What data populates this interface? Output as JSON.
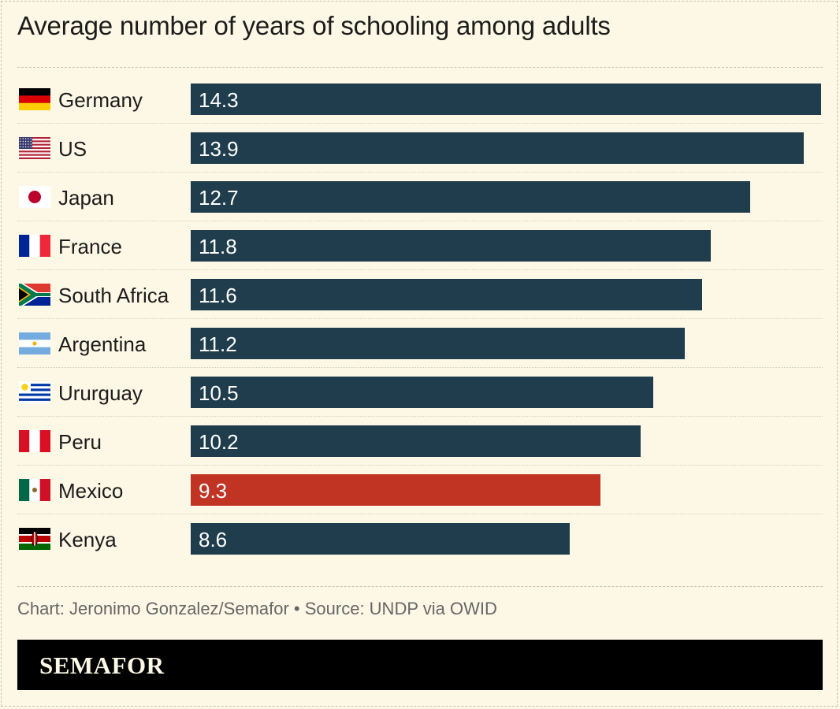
{
  "title": "Average number of years of schooling among adults",
  "credit": "Chart: Jeronimo Gonzalez/Semafor • Source: UNDP via OWID",
  "brand": "SEMAFOR",
  "colors": {
    "bar": "#1f3d4c",
    "highlight": "#c13424",
    "background": "#fdf8e5"
  },
  "chart_data": {
    "type": "bar",
    "orientation": "horizontal",
    "title": "Average number of years of schooling among adults",
    "xlabel": "",
    "ylabel": "",
    "xlim": [
      0,
      14.3
    ],
    "grid": false,
    "legend": "none",
    "categories": [
      "Germany",
      "US",
      "Japan",
      "France",
      "South Africa",
      "Argentina",
      "Ururguay",
      "Peru",
      "Mexico",
      "Kenya"
    ],
    "values": [
      14.3,
      13.9,
      12.7,
      11.8,
      11.6,
      11.2,
      10.5,
      10.2,
      9.3,
      8.6
    ],
    "value_labels": [
      "14.3",
      "13.9",
      "12.7",
      "11.8",
      "11.6",
      "11.2",
      "10.5",
      "10.2",
      "9.3",
      "8.6"
    ],
    "highlight": "Mexico",
    "flag_icons": [
      "germany-flag-icon",
      "us-flag-icon",
      "japan-flag-icon",
      "france-flag-icon",
      "south-africa-flag-icon",
      "argentina-flag-icon",
      "uruguay-flag-icon",
      "peru-flag-icon",
      "mexico-flag-icon",
      "kenya-flag-icon"
    ]
  }
}
